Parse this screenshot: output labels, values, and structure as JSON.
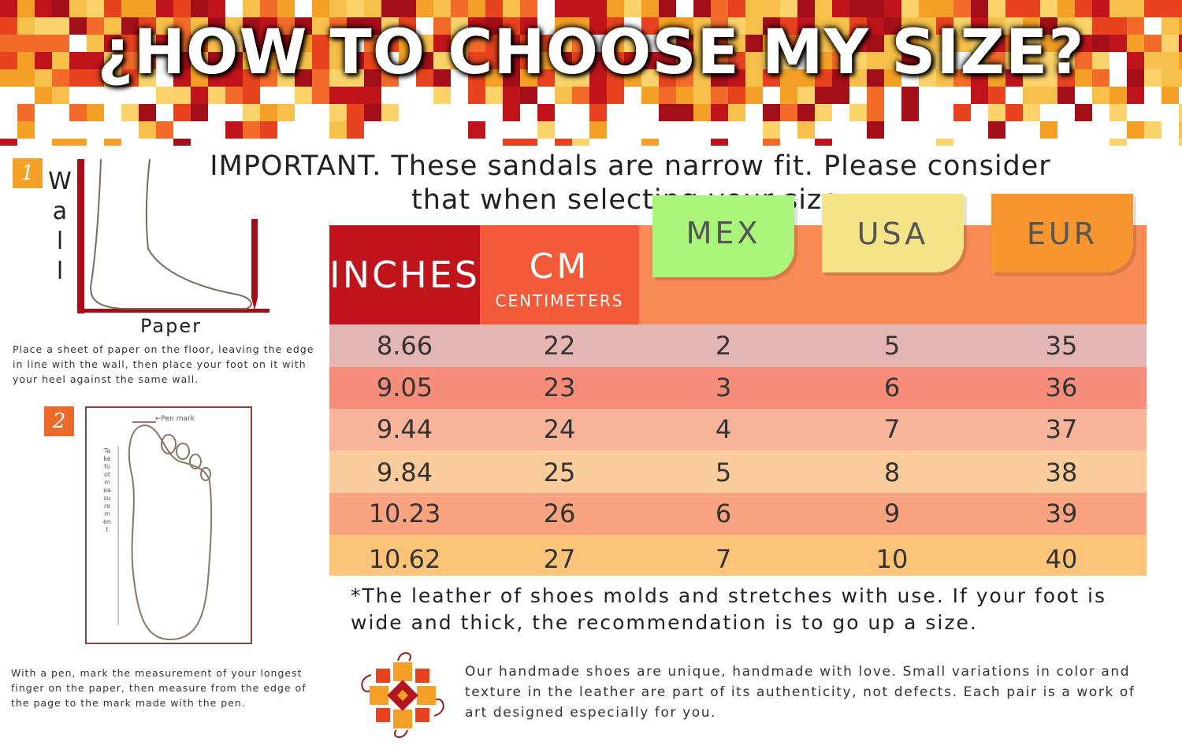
{
  "banner": {
    "title": "¿HOW TO CHOOSE MY SIZE?"
  },
  "notice": {
    "important": "IMPORTANT. These sandals are narrow fit. Please consider that when selecting your size."
  },
  "step1": {
    "badge": "1",
    "wall_letters": [
      "W",
      "a",
      "l",
      "l"
    ],
    "paper_label": "Paper",
    "text": "Place a sheet of paper on the floor, leaving the edge in line with the wall, then place your foot on it with your heel against the same wall."
  },
  "step2": {
    "badge": "2",
    "pen_mark_label": "←Pen mark",
    "vertical_note": "Take foot measurement",
    "text": "With a pen, mark the measurement of your longest finger on the paper, then measure from the edge of the page to the mark made with the pen."
  },
  "table": {
    "headers": {
      "inches": "INCHES",
      "cm": "CM",
      "cm_sub": "CENTIMETERS",
      "mex": "MEX",
      "usa": "USA",
      "eur": "EUR"
    },
    "colors": {
      "inches": "#c0141d",
      "cm": "#f25a3a",
      "mex": "#a8f57a",
      "usa": "#f5e487",
      "eur": "#f7962e"
    },
    "row_colors": [
      "#e4b6b3",
      "#f58d7a",
      "#f8b39b",
      "#fbcc9c",
      "#f9a380",
      "#fbc479"
    ],
    "rows": [
      [
        "8.66",
        "22",
        "2",
        "5",
        "35"
      ],
      [
        "9.05",
        "23",
        "3",
        "6",
        "36"
      ],
      [
        "9.44",
        "24",
        "4",
        "7",
        "37"
      ],
      [
        "9.84",
        "25",
        "5",
        "8",
        "38"
      ],
      [
        "10.23",
        "26",
        "6",
        "9",
        "39"
      ],
      [
        "10.62",
        "27",
        "7",
        "10",
        "40"
      ]
    ]
  },
  "footnote": "*The leather of shoes molds and stretches with use. If your foot is wide and thick, the recommendation is to go up a size.",
  "handmade_note": "Our handmade shoes are unique, handmade with love. Small variations in color and texture in the leather are part of its authenticity, not defects. Each pair is a work of art designed especially for you."
}
